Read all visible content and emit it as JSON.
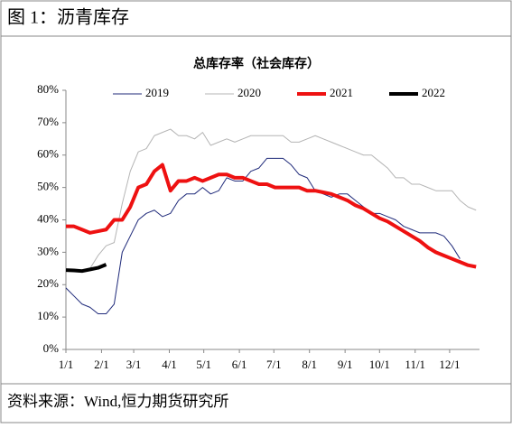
{
  "header": {
    "title": "图 1：沥青库存"
  },
  "chart_data": {
    "type": "line",
    "title": "总库存率（社会库存）",
    "x": [
      0,
      7,
      14,
      21,
      28,
      35,
      42,
      49,
      56,
      63,
      70,
      77,
      84,
      91,
      98,
      105,
      112,
      119,
      126,
      133,
      140,
      147,
      154,
      161,
      168,
      175,
      182,
      189,
      196,
      203,
      210,
      217,
      224,
      231,
      238,
      245,
      252,
      259,
      266,
      273,
      280,
      287,
      294,
      301,
      308,
      315,
      322,
      329,
      336,
      343,
      350,
      357
    ],
    "xlim": [
      0,
      360
    ],
    "xticks": [
      {
        "value": 0,
        "label": "1/1"
      },
      {
        "value": 31,
        "label": "2/1"
      },
      {
        "value": 59,
        "label": "3/1"
      },
      {
        "value": 90,
        "label": "4/1"
      },
      {
        "value": 120,
        "label": "5/1"
      },
      {
        "value": 151,
        "label": "6/1"
      },
      {
        "value": 181,
        "label": "7/1"
      },
      {
        "value": 212,
        "label": "8/1"
      },
      {
        "value": 243,
        "label": "9/1"
      },
      {
        "value": 273,
        "label": "10/1"
      },
      {
        "value": 304,
        "label": "11/1"
      },
      {
        "value": 334,
        "label": "12/1"
      }
    ],
    "ylim": [
      0,
      80
    ],
    "yticks": [
      {
        "value": 0,
        "label": "0%"
      },
      {
        "value": 10,
        "label": "10%"
      },
      {
        "value": 20,
        "label": "20%"
      },
      {
        "value": 30,
        "label": "30%"
      },
      {
        "value": 40,
        "label": "40%"
      },
      {
        "value": 50,
        "label": "50%"
      },
      {
        "value": 60,
        "label": "60%"
      },
      {
        "value": 70,
        "label": "70%"
      },
      {
        "value": 80,
        "label": "80%"
      }
    ],
    "legend": "top",
    "series": [
      {
        "name": "2019",
        "color": "#1f2a7a",
        "width": 1,
        "values": [
          19,
          16.5,
          14,
          13,
          11,
          11,
          14,
          30,
          35,
          40,
          42,
          43,
          41,
          42,
          46,
          48,
          48,
          50,
          48,
          49,
          53,
          52,
          52,
          55,
          56,
          59,
          59,
          59,
          57,
          54,
          53,
          49,
          48,
          47,
          48,
          48,
          46,
          44,
          42,
          42,
          41,
          40,
          38,
          37,
          36,
          36,
          36,
          35,
          32,
          28,
          null,
          null
        ]
      },
      {
        "name": "2020",
        "color": "#b4b4b4",
        "width": 1,
        "values": [
          null,
          null,
          null,
          25,
          29,
          32,
          33,
          45,
          55,
          61,
          62,
          66,
          67,
          68,
          66,
          66,
          65,
          67,
          63,
          64,
          65,
          64,
          65,
          66,
          66,
          66,
          66,
          66,
          64,
          64,
          65,
          66,
          65,
          64,
          63,
          62,
          61,
          60,
          60,
          58,
          56,
          53,
          53,
          51,
          51,
          50,
          49,
          49,
          49,
          46,
          44,
          43
        ]
      },
      {
        "name": "2021",
        "color": "#ee1111",
        "width": 4,
        "values": [
          38,
          38,
          37,
          36,
          36.5,
          37,
          40,
          40,
          44,
          50,
          51,
          55,
          57,
          49,
          52,
          52,
          53,
          52,
          53,
          54,
          54,
          53,
          53,
          52,
          51,
          51,
          50,
          50,
          50,
          50,
          49,
          49,
          48.5,
          48,
          47,
          46,
          44.5,
          43.5,
          42,
          40.5,
          39.5,
          38,
          36.5,
          35,
          33.5,
          31.5,
          30,
          29,
          28,
          27,
          26,
          25.5
        ]
      },
      {
        "name": "2022",
        "color": "#000000",
        "width": 4,
        "values": [
          24.5,
          24.4,
          24.2,
          24.7,
          25.2,
          26.2,
          null,
          null,
          null,
          null,
          null,
          null,
          null,
          null,
          null,
          null,
          null,
          null,
          null,
          null,
          null,
          null,
          null,
          null,
          null,
          null,
          null,
          null,
          null,
          null,
          null,
          null,
          null,
          null,
          null,
          null,
          null,
          null,
          null,
          null,
          null,
          null,
          null,
          null,
          null,
          null,
          null,
          null,
          null,
          null,
          null,
          null
        ]
      }
    ]
  },
  "footer": {
    "source": "资料来源：Wind,恒力期货研究所"
  }
}
